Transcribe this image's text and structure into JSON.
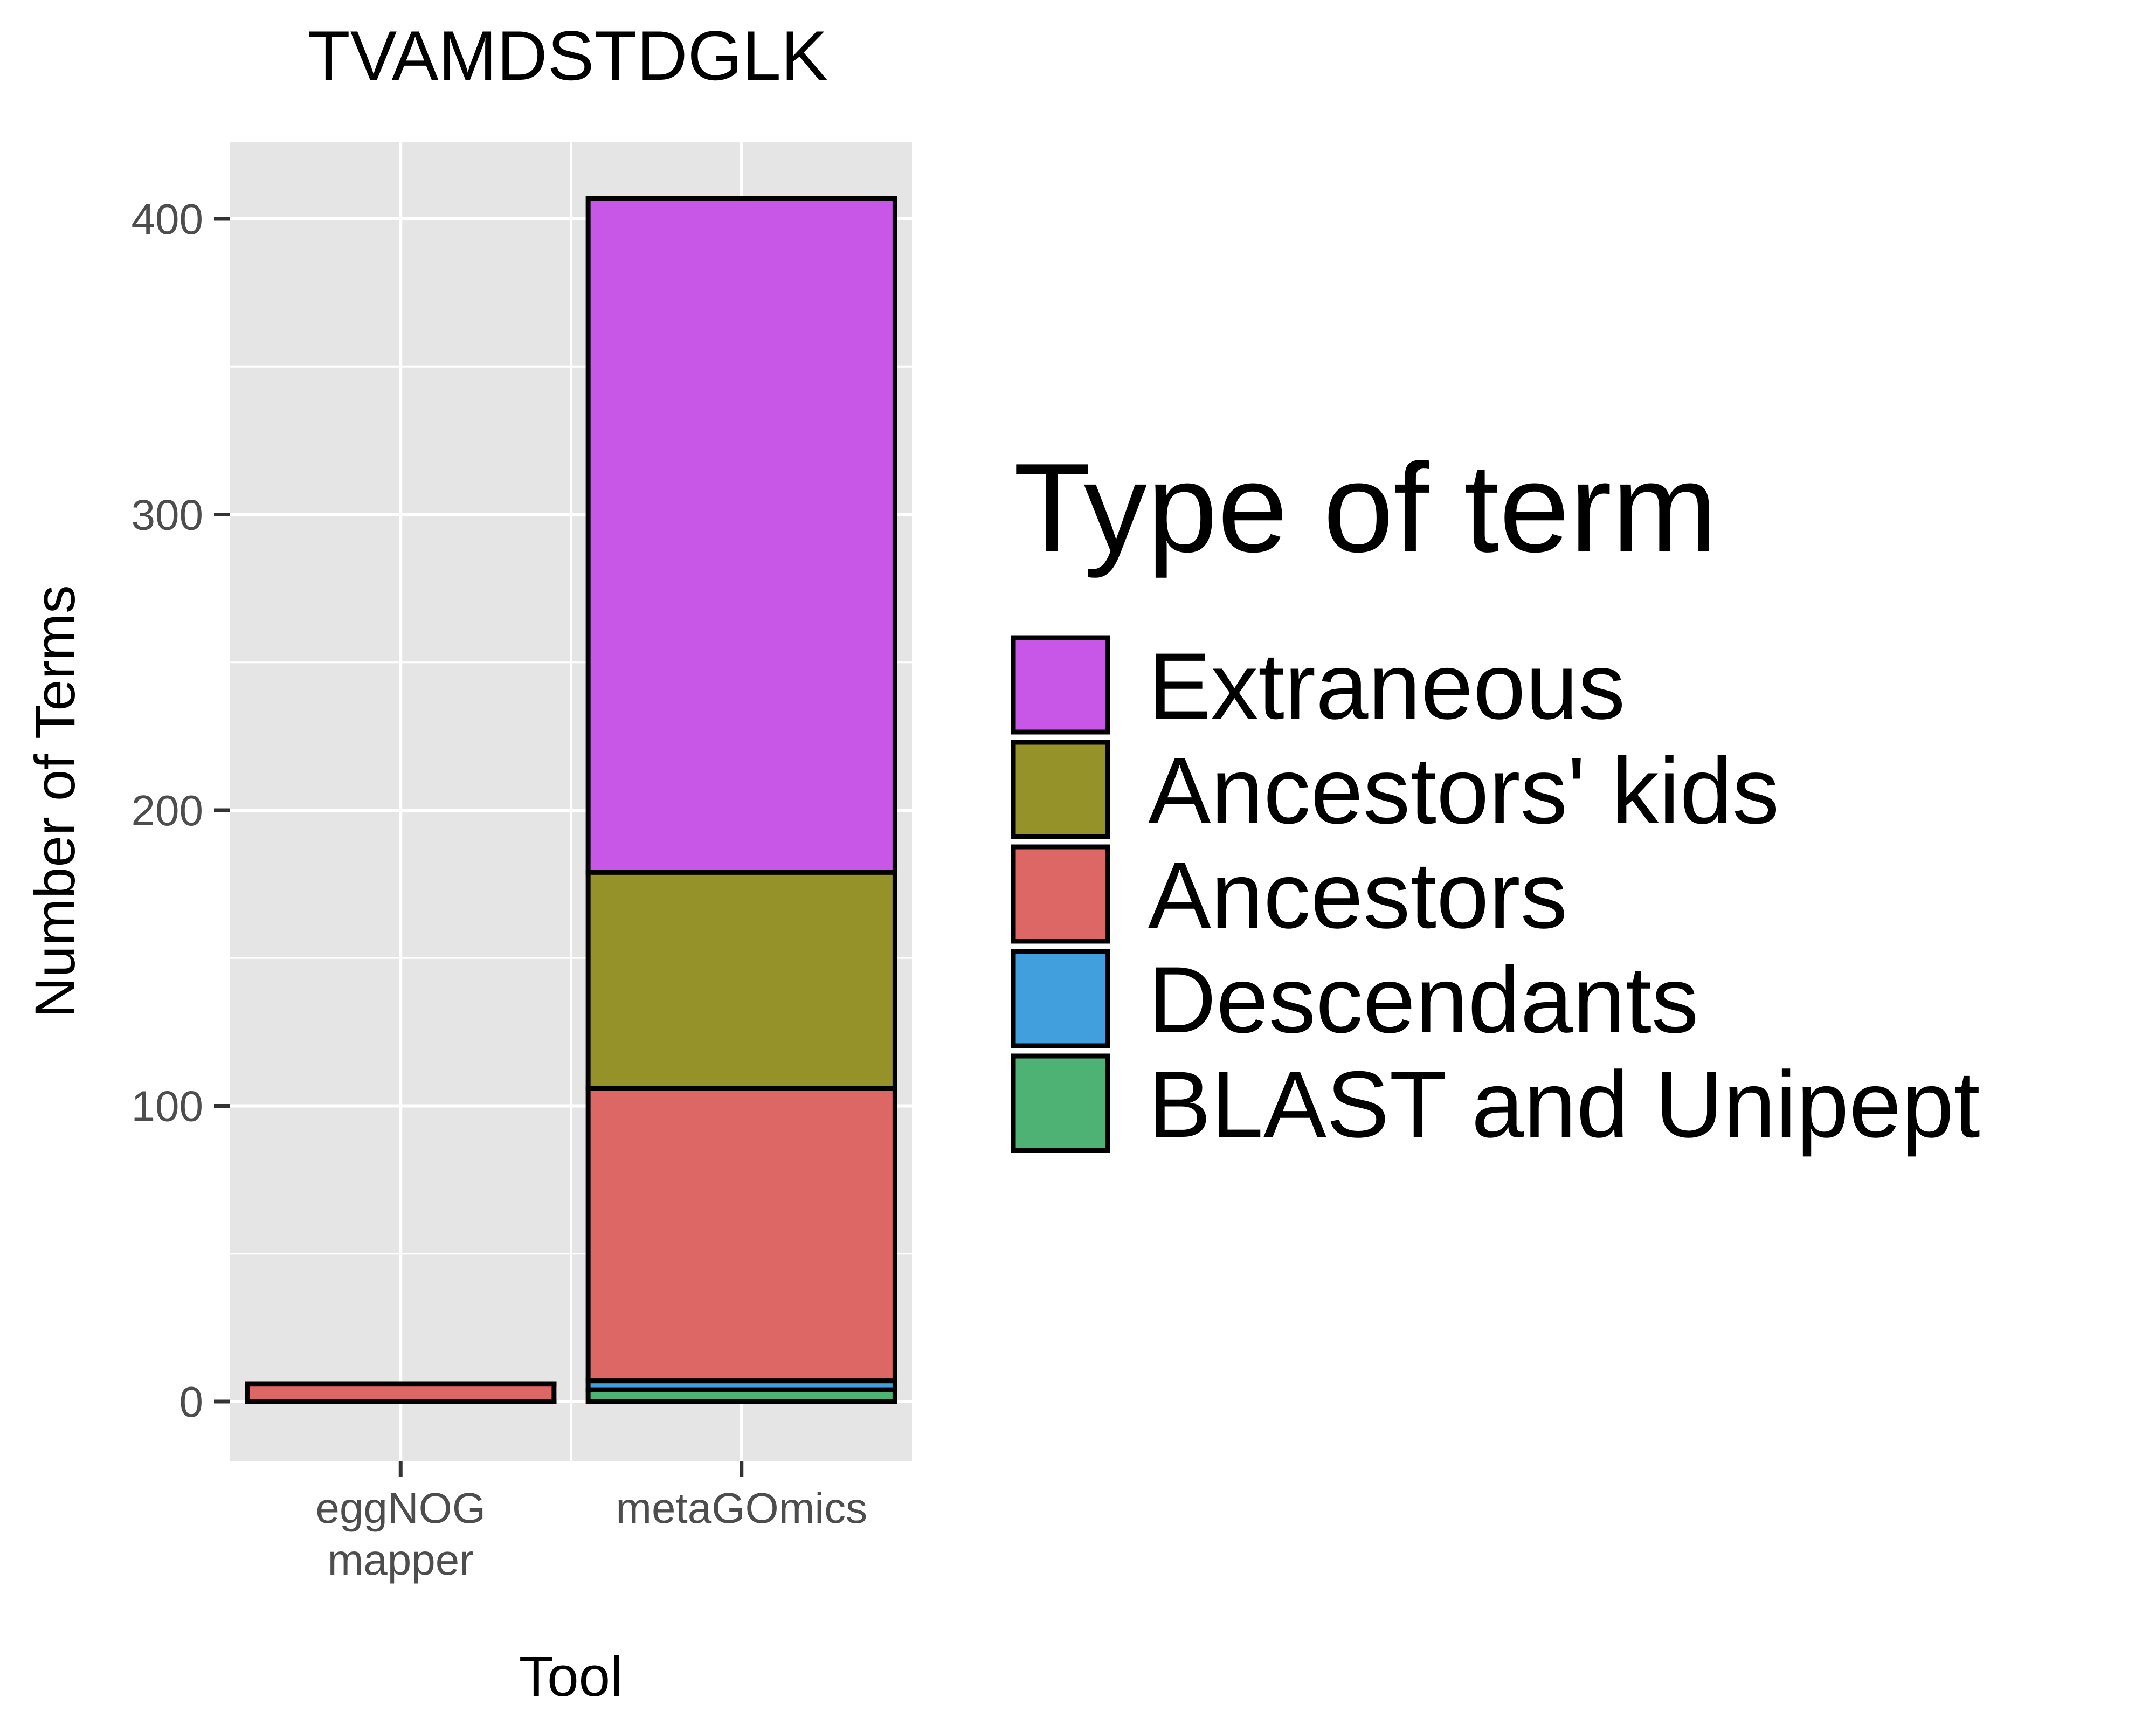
{
  "chart_data": {
    "type": "bar",
    "stacked": true,
    "title": "TVAMDSTDGLK",
    "xlabel": "Tool",
    "ylabel": "Number of Terms",
    "categories": [
      "eggNOG\nmapper",
      "metaGOmics"
    ],
    "ylim": [
      -20,
      425
    ],
    "yticks": [
      0,
      100,
      200,
      300,
      400
    ],
    "grid": true,
    "legend_title": "Type of term",
    "legend_position": "right",
    "series": [
      {
        "name": "BLAST and Unipept",
        "color": "#4DB273",
        "values": [
          0,
          4
        ]
      },
      {
        "name": "Descendants",
        "color": "#419FDE",
        "values": [
          0,
          3
        ]
      },
      {
        "name": "Ancestors",
        "color": "#DD6764",
        "values": [
          6,
          99
        ]
      },
      {
        "name": "Ancestors' kids",
        "color": "#949228",
        "values": [
          0,
          73
        ]
      },
      {
        "name": "Extraneous",
        "color": "#C857E8",
        "values": [
          0,
          228
        ]
      }
    ]
  },
  "colors": {
    "panel_background": "#E5E5E5",
    "grid": "#FFFFFF",
    "bar_outline": "#000000",
    "axis_text": "#4D4D4D"
  }
}
